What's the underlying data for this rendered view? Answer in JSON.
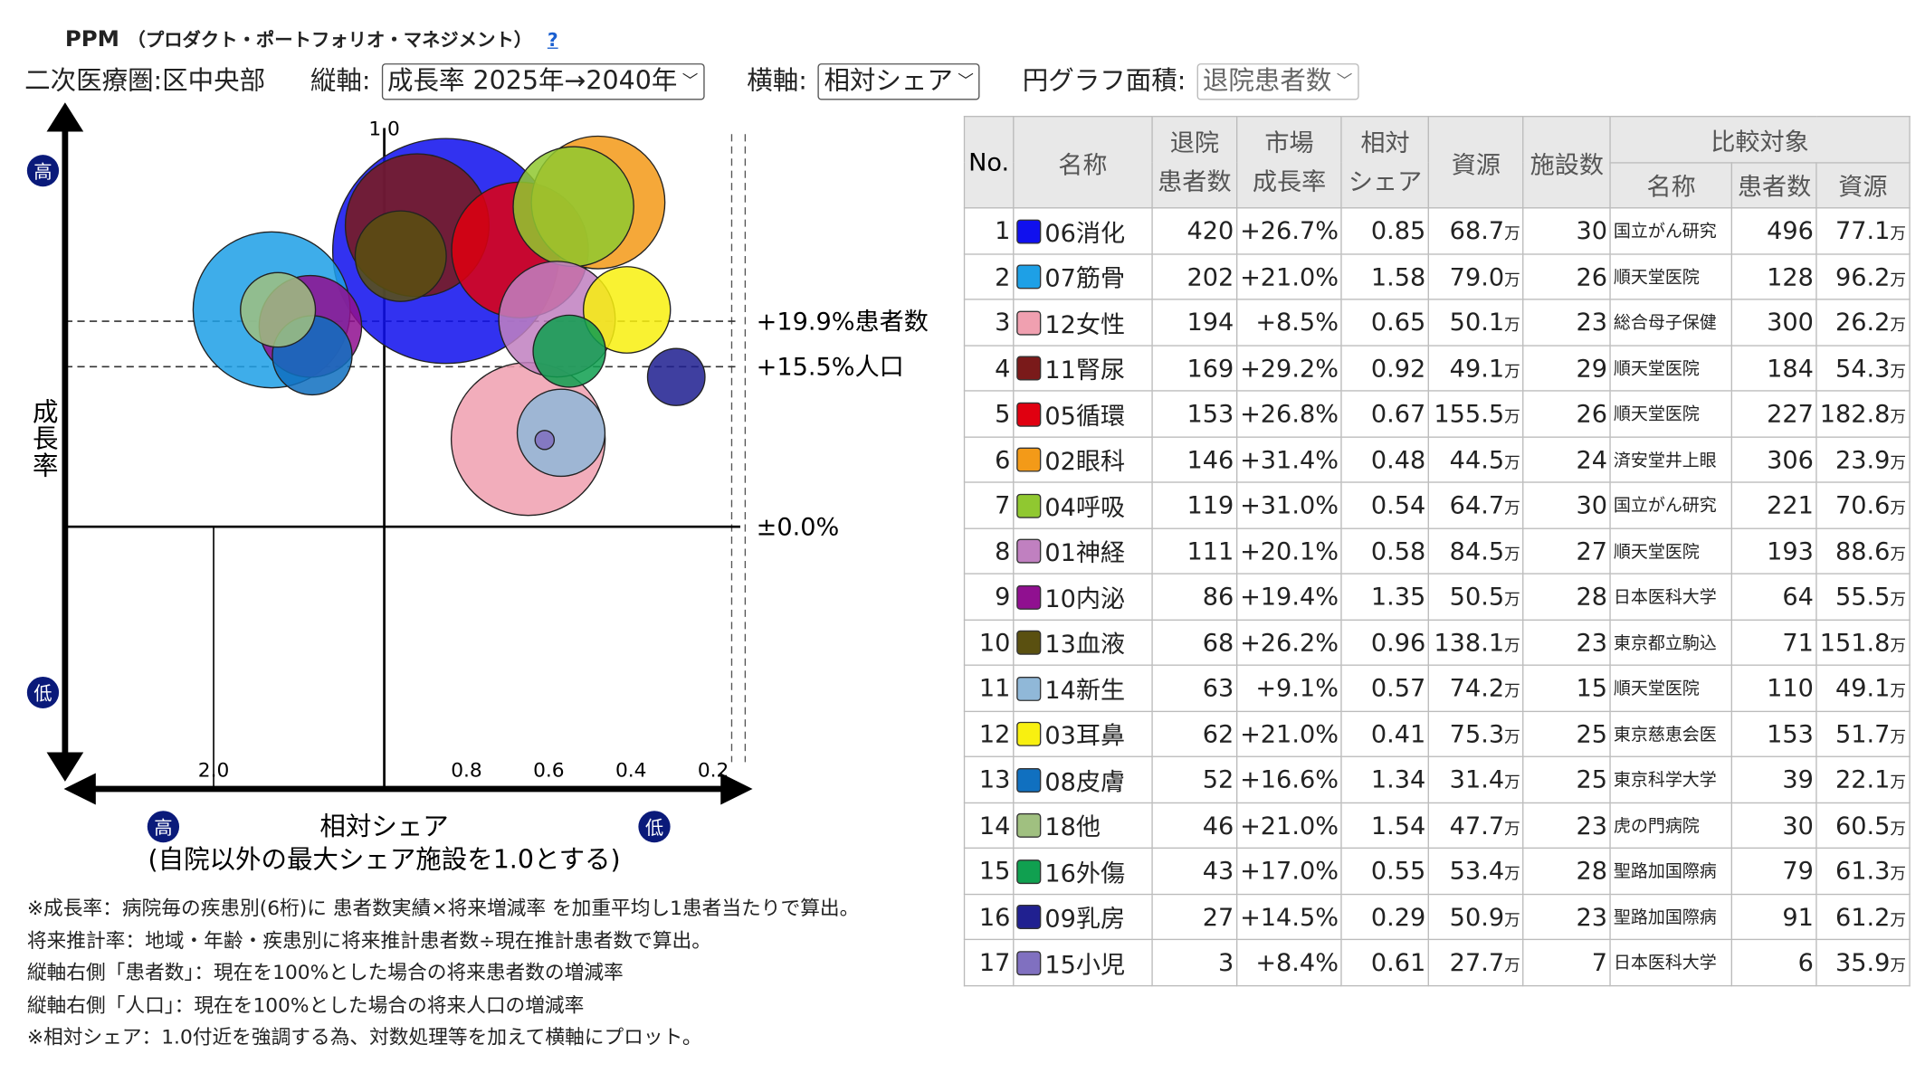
{
  "header": {
    "title": "PPM",
    "subtitle": "（プロダクト・ポートフォリオ・マネジメント）",
    "help": "?"
  },
  "controls": {
    "region": "二次医療圏:区中央部",
    "vertical_label": "縦軸:",
    "vertical_value": "成長率 2025年→2040年",
    "horizontal_label": "横軸:",
    "horizontal_value": "相対シェア",
    "area_label": "円グラフ面積:",
    "area_value": "退院患者数"
  },
  "chart_data": {
    "type": "scatter",
    "subtype": "bubble",
    "ylabel": "成長率",
    "y_high": "高",
    "y_low": "低",
    "xlabel": "相対シェア",
    "xlabel_note": "(自院以外の最大シェア施設を1.0とする)",
    "x_high": "高",
    "x_low": "低",
    "x_scale": "log-reversed",
    "x_ticks": [
      {
        "value": 2.0,
        "label": "2.0"
      },
      {
        "value": 1.0,
        "label": "1.0"
      },
      {
        "value": 0.8,
        "label": "0.8"
      },
      {
        "value": 0.6,
        "label": "0.6"
      },
      {
        "value": 0.4,
        "label": "0.4"
      },
      {
        "value": 0.2,
        "label": "0.2"
      }
    ],
    "ref_lines": [
      {
        "y": 19.9,
        "label": "+19.9%患者数"
      },
      {
        "y": 15.5,
        "label": "+15.5%人口"
      },
      {
        "y": 0.0,
        "label": "±0.0%"
      }
    ],
    "size_field": "patients",
    "points": [
      {
        "name": "06消化",
        "x": 0.85,
        "y": 26.7,
        "size": 420,
        "color": "#1010ee"
      },
      {
        "name": "07筋骨",
        "x": 1.58,
        "y": 21.0,
        "size": 202,
        "color": "#1ea0e6"
      },
      {
        "name": "12女性",
        "x": 0.65,
        "y": 8.5,
        "size": 194,
        "color": "#f0a0b0"
      },
      {
        "name": "11腎尿",
        "x": 0.92,
        "y": 29.2,
        "size": 169,
        "color": "#7a1a1a"
      },
      {
        "name": "05循環",
        "x": 0.67,
        "y": 26.8,
        "size": 153,
        "color": "#e00010"
      },
      {
        "name": "02眼科",
        "x": 0.48,
        "y": 31.4,
        "size": 146,
        "color": "#f39a18"
      },
      {
        "name": "04呼吸",
        "x": 0.54,
        "y": 31.0,
        "size": 119,
        "color": "#90c830"
      },
      {
        "name": "01神経",
        "x": 0.58,
        "y": 20.1,
        "size": 111,
        "color": "#c080c0"
      },
      {
        "name": "10内泌",
        "x": 1.35,
        "y": 19.4,
        "size": 86,
        "color": "#901090"
      },
      {
        "name": "13血液",
        "x": 0.96,
        "y": 26.2,
        "size": 68,
        "color": "#5a5010"
      },
      {
        "name": "14新生",
        "x": 0.57,
        "y": 9.1,
        "size": 63,
        "color": "#90b8d8"
      },
      {
        "name": "03耳鼻",
        "x": 0.41,
        "y": 21.0,
        "size": 62,
        "color": "#f8f010"
      },
      {
        "name": "08皮膚",
        "x": 1.34,
        "y": 16.6,
        "size": 52,
        "color": "#1070c0"
      },
      {
        "name": "18他",
        "x": 1.54,
        "y": 21.0,
        "size": 46,
        "color": "#a0c080"
      },
      {
        "name": "16外傷",
        "x": 0.55,
        "y": 17.0,
        "size": 43,
        "color": "#10a050"
      },
      {
        "name": "09乳房",
        "x": 0.29,
        "y": 14.5,
        "size": 27,
        "color": "#202090"
      },
      {
        "name": "15小児",
        "x": 0.61,
        "y": 8.4,
        "size": 3,
        "color": "#8070c0"
      }
    ]
  },
  "table": {
    "headers": {
      "no": "No.",
      "name": "名称",
      "patients": [
        "退院",
        "患者数"
      ],
      "growth": [
        "市場",
        "成長率"
      ],
      "share": [
        "相対",
        "シェア"
      ],
      "resource": "資源",
      "facilities": "施設数",
      "compare": "比較対象",
      "c_name": "名称",
      "c_patients": "患者数",
      "c_resource": "資源"
    },
    "unit": "万",
    "rows": [
      {
        "no": "1",
        "name": "06消化",
        "patients": "420",
        "growth": "+26.7%",
        "share": "0.85",
        "resource": "68.7",
        "facilities": "30",
        "c_name": "国立がん研究",
        "c_patients": "496",
        "c_resource": "77.1"
      },
      {
        "no": "2",
        "name": "07筋骨",
        "patients": "202",
        "growth": "+21.0%",
        "share": "1.58",
        "resource": "79.0",
        "facilities": "26",
        "c_name": "順天堂医院",
        "c_patients": "128",
        "c_resource": "96.2"
      },
      {
        "no": "3",
        "name": "12女性",
        "patients": "194",
        "growth": "+8.5%",
        "share": "0.65",
        "resource": "50.1",
        "facilities": "23",
        "c_name": "総合母子保健",
        "c_patients": "300",
        "c_resource": "26.2"
      },
      {
        "no": "4",
        "name": "11腎尿",
        "patients": "169",
        "growth": "+29.2%",
        "share": "0.92",
        "resource": "49.1",
        "facilities": "29",
        "c_name": "順天堂医院",
        "c_patients": "184",
        "c_resource": "54.3"
      },
      {
        "no": "5",
        "name": "05循環",
        "patients": "153",
        "growth": "+26.8%",
        "share": "0.67",
        "resource": "155.5",
        "facilities": "26",
        "c_name": "順天堂医院",
        "c_patients": "227",
        "c_resource": "182.8"
      },
      {
        "no": "6",
        "name": "02眼科",
        "patients": "146",
        "growth": "+31.4%",
        "share": "0.48",
        "resource": "44.5",
        "facilities": "24",
        "c_name": "済安堂井上眼",
        "c_patients": "306",
        "c_resource": "23.9"
      },
      {
        "no": "7",
        "name": "04呼吸",
        "patients": "119",
        "growth": "+31.0%",
        "share": "0.54",
        "resource": "64.7",
        "facilities": "30",
        "c_name": "国立がん研究",
        "c_patients": "221",
        "c_resource": "70.6"
      },
      {
        "no": "8",
        "name": "01神経",
        "patients": "111",
        "growth": "+20.1%",
        "share": "0.58",
        "resource": "84.5",
        "facilities": "27",
        "c_name": "順天堂医院",
        "c_patients": "193",
        "c_resource": "88.6"
      },
      {
        "no": "9",
        "name": "10内泌",
        "patients": "86",
        "growth": "+19.4%",
        "share": "1.35",
        "resource": "50.5",
        "facilities": "28",
        "c_name": "日本医科大学",
        "c_patients": "64",
        "c_resource": "55.5"
      },
      {
        "no": "10",
        "name": "13血液",
        "patients": "68",
        "growth": "+26.2%",
        "share": "0.96",
        "resource": "138.1",
        "facilities": "23",
        "c_name": "東京都立駒込",
        "c_patients": "71",
        "c_resource": "151.8"
      },
      {
        "no": "11",
        "name": "14新生",
        "patients": "63",
        "growth": "+9.1%",
        "share": "0.57",
        "resource": "74.2",
        "facilities": "15",
        "c_name": "順天堂医院",
        "c_patients": "110",
        "c_resource": "49.1"
      },
      {
        "no": "12",
        "name": "03耳鼻",
        "patients": "62",
        "growth": "+21.0%",
        "share": "0.41",
        "resource": "75.3",
        "facilities": "25",
        "c_name": "東京慈恵会医",
        "c_patients": "153",
        "c_resource": "51.7"
      },
      {
        "no": "13",
        "name": "08皮膚",
        "patients": "52",
        "growth": "+16.6%",
        "share": "1.34",
        "resource": "31.4",
        "facilities": "25",
        "c_name": "東京科学大学",
        "c_patients": "39",
        "c_resource": "22.1"
      },
      {
        "no": "14",
        "name": "18他",
        "patients": "46",
        "growth": "+21.0%",
        "share": "1.54",
        "resource": "47.7",
        "facilities": "23",
        "c_name": "虎の門病院",
        "c_patients": "30",
        "c_resource": "60.5"
      },
      {
        "no": "15",
        "name": "16外傷",
        "patients": "43",
        "growth": "+17.0%",
        "share": "0.55",
        "resource": "53.4",
        "facilities": "28",
        "c_name": "聖路加国際病",
        "c_patients": "79",
        "c_resource": "61.3"
      },
      {
        "no": "16",
        "name": "09乳房",
        "patients": "27",
        "growth": "+14.5%",
        "share": "0.29",
        "resource": "50.9",
        "facilities": "23",
        "c_name": "聖路加国際病",
        "c_patients": "91",
        "c_resource": "61.2"
      },
      {
        "no": "17",
        "name": "15小児",
        "patients": "3",
        "growth": "+8.4%",
        "share": "0.61",
        "resource": "27.7",
        "facilities": "7",
        "c_name": "日本医科大学",
        "c_patients": "6",
        "c_resource": "35.9"
      }
    ]
  },
  "notes": [
    "※成長率：病院毎の疾患別(6桁)に 患者数実績×将来増減率 を加重平均し1患者当たりで算出。",
    "将来推計率：地域・年齢・疾患別に将来推計患者数÷現在推計患者数で算出。",
    "縦軸右側「患者数」：現在を100%とした場合の将来患者数の増減率",
    "縦軸右側「人口」：現在を100%とした場合の将来人口の増減率",
    "※相対シェア：1.0付近を強調する為、対数処理等を加えて横軸にプロット。"
  ]
}
